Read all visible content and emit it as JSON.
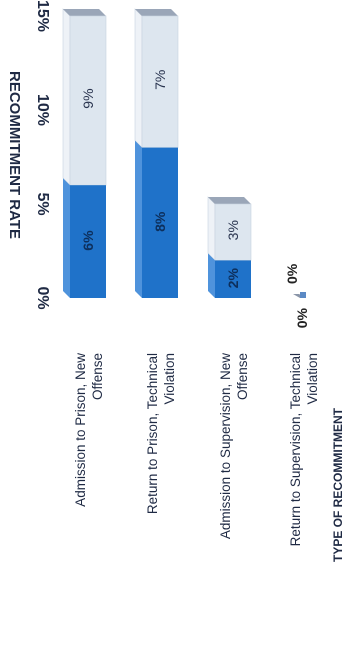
{
  "chart_data": {
    "type": "bar",
    "orientation": "horizontal",
    "stacked": true,
    "title": "",
    "categories": [
      "Return to Supervision, Technical Violation",
      "Admission to Supervision, New Offense",
      "Return to Prison, Technical Violation",
      "Admission to Prison, New Offense"
    ],
    "category_label_lines": [
      [
        "Return to Supervision, Technical",
        "Violation"
      ],
      [
        "Admission to Supervision, New",
        "Offense"
      ],
      [
        "Return to Prison, Technical",
        "Violation"
      ],
      [
        "Admission to Prison, New",
        "Offense"
      ]
    ],
    "series": [
      {
        "values": [
          0,
          2,
          8,
          6
        ],
        "labels": [
          "0%",
          "2%",
          "8%",
          "6%"
        ],
        "color": "#1f72c9"
      },
      {
        "values": [
          0,
          3,
          7,
          9
        ],
        "labels": [
          "0%",
          "3%",
          "7%",
          "9%"
        ],
        "color": "#dde6ef"
      }
    ],
    "xlabel": "RECOMMITMENT RATE",
    "ylabel": "TYPE OF RECOMMITMENT",
    "xlim": [
      0,
      15
    ],
    "xticks": [
      0,
      5,
      10,
      15
    ],
    "xtick_labels": [
      "0%",
      "5%",
      "10%",
      "15%"
    ],
    "grid": false,
    "legend": "none"
  }
}
